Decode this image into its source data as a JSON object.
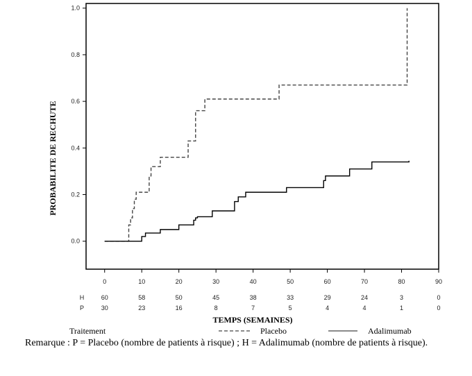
{
  "chart_data": {
    "type": "line",
    "step": true,
    "ylabel": "PROBABILITE DE RECHUTE",
    "xlabel": "TEMPS (SEMAINES)",
    "xlim": [
      -5,
      90
    ],
    "ylim": [
      -0.12,
      1.02
    ],
    "xticks": [
      0,
      10,
      20,
      30,
      40,
      50,
      60,
      70,
      80,
      90
    ],
    "yticks": [
      0.0,
      0.2,
      0.4,
      0.6,
      0.8,
      1.0
    ],
    "ytick_labels": [
      "0.0",
      "0.2",
      "0.4",
      "0.6",
      "0.8",
      "1.0"
    ],
    "series": [
      {
        "name": "Placebo",
        "style": "dashed",
        "color": "#444444",
        "x": [
          0,
          6.5,
          7,
          7.5,
          8,
          8.5,
          10,
          12,
          12.5,
          13.5,
          15,
          22,
          22.5,
          23.5,
          24.5,
          26,
          27,
          47,
          81.5
        ],
        "y": [
          0.0,
          0.07,
          0.1,
          0.14,
          0.18,
          0.21,
          0.21,
          0.28,
          0.32,
          0.32,
          0.36,
          0.36,
          0.43,
          0.43,
          0.56,
          0.56,
          0.61,
          0.67,
          1.0
        ]
      },
      {
        "name": "Adalimumab",
        "style": "solid",
        "color": "#000000",
        "x": [
          0,
          10,
          11,
          15,
          20,
          24,
          24.5,
          25,
          29,
          35,
          36,
          38,
          49,
          59,
          59.5,
          66,
          72,
          82
        ],
        "y": [
          0.0,
          0.02,
          0.035,
          0.05,
          0.07,
          0.09,
          0.1,
          0.105,
          0.13,
          0.17,
          0.19,
          0.21,
          0.23,
          0.26,
          0.28,
          0.31,
          0.34,
          0.345
        ]
      }
    ],
    "risk_table": {
      "x": [
        0,
        10,
        20,
        30,
        40,
        50,
        60,
        70,
        80,
        90
      ],
      "rows": [
        {
          "label": "H",
          "values": [
            "60",
            "58",
            "50",
            "45",
            "38",
            "33",
            "29",
            "24",
            "3",
            "0"
          ]
        },
        {
          "label": "P",
          "values": [
            "30",
            "23",
            "16",
            "8",
            "7",
            "5",
            "4",
            "4",
            "1",
            "0"
          ]
        }
      ]
    },
    "legend": {
      "title": "Traitement",
      "entries": [
        {
          "label": "Placebo",
          "style": "dashed"
        },
        {
          "label": "Adalimumab",
          "style": "solid"
        }
      ]
    }
  },
  "note": "Remarque : P = Placebo (nombre de patients à risque) ; H = Adalimumab (nombre de patients à risque)."
}
